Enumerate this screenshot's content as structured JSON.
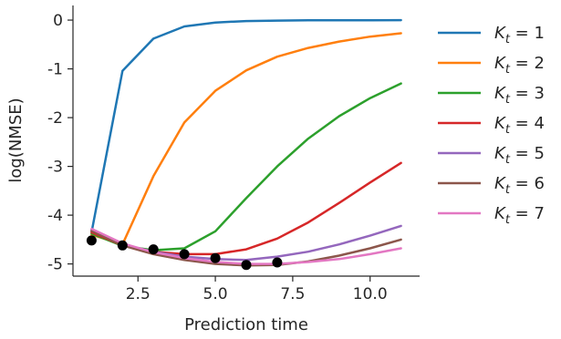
{
  "chart_data": {
    "type": "line",
    "xlabel": "Prediction time",
    "ylabel": "log(NMSE)",
    "xlim": [
      0.4,
      11.6
    ],
    "ylim": [
      -5.25,
      0.3
    ],
    "xticks": [
      2.5,
      5.0,
      7.5,
      10.0
    ],
    "xtick_labels": [
      "2.5",
      "5.0",
      "7.5",
      "10.0"
    ],
    "yticks": [
      0,
      -1,
      -2,
      -3,
      -4,
      -5
    ],
    "ytick_labels": [
      "0",
      "-1",
      "-2",
      "-3",
      "-4",
      "-5"
    ],
    "grid": false,
    "legend_position": "right",
    "x": [
      1,
      2,
      3,
      4,
      5,
      6,
      7,
      8,
      9,
      10,
      11
    ],
    "series": [
      {
        "name": "K_t = 1",
        "sub": "t",
        "num": "1",
        "color": "#1f77b4",
        "values": [
          -4.35,
          -1.04,
          -0.38,
          -0.13,
          -0.05,
          -0.02,
          -0.01,
          -0.005,
          -0.003,
          -0.002,
          0.0
        ]
      },
      {
        "name": "K_t = 2",
        "sub": "t",
        "num": "2",
        "color": "#ff7f0e",
        "values": [
          -4.4,
          -4.6,
          -3.2,
          -2.1,
          -1.45,
          -1.03,
          -0.75,
          -0.57,
          -0.44,
          -0.34,
          -0.27
        ]
      },
      {
        "name": "K_t = 3",
        "sub": "t",
        "num": "3",
        "color": "#2ca02c",
        "values": [
          -4.38,
          -4.63,
          -4.72,
          -4.68,
          -4.33,
          -3.65,
          -3.0,
          -2.43,
          -1.97,
          -1.6,
          -1.3
        ]
      },
      {
        "name": "K_t = 4",
        "sub": "t",
        "num": "4",
        "color": "#d62728",
        "values": [
          -4.35,
          -4.62,
          -4.75,
          -4.8,
          -4.8,
          -4.7,
          -4.48,
          -4.15,
          -3.75,
          -3.33,
          -2.93
        ]
      },
      {
        "name": "K_t = 5",
        "sub": "t",
        "num": "5",
        "color": "#9467bd",
        "values": [
          -4.3,
          -4.6,
          -4.75,
          -4.85,
          -4.9,
          -4.92,
          -4.85,
          -4.75,
          -4.6,
          -4.42,
          -4.22
        ]
      },
      {
        "name": "K_t = 6",
        "sub": "t",
        "num": "6",
        "color": "#8c564b",
        "values": [
          -4.32,
          -4.62,
          -4.8,
          -4.92,
          -5.0,
          -5.03,
          -5.02,
          -4.95,
          -4.83,
          -4.68,
          -4.5
        ]
      },
      {
        "name": "K_t = 7",
        "sub": "t",
        "num": "7",
        "color": "#e377c2",
        "values": [
          -4.28,
          -4.58,
          -4.76,
          -4.88,
          -4.96,
          -5.0,
          -5.0,
          -4.96,
          -4.9,
          -4.8,
          -4.68
        ]
      }
    ],
    "minimum_points": {
      "color": "#000000",
      "x": [
        1,
        2,
        3,
        4,
        5,
        6,
        7
      ],
      "y": [
        -4.52,
        -4.62,
        -4.7,
        -4.8,
        -4.88,
        -5.02,
        -4.97
      ]
    }
  }
}
